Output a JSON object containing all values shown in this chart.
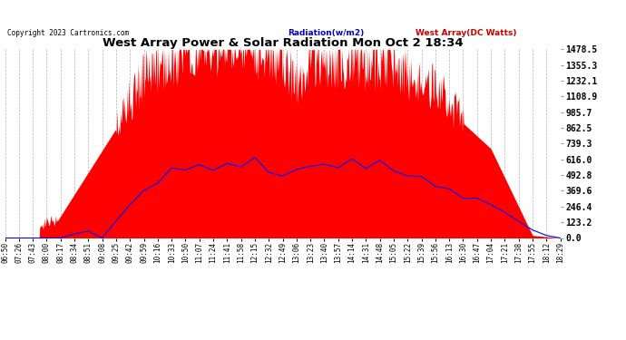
{
  "title": "West Array Power & Solar Radiation Mon Oct 2 18:34",
  "copyright": "Copyright 2023 Cartronics.com",
  "legend_radiation": "Radiation(w/m2)",
  "legend_west": "West Array(DC Watts)",
  "ylabel_right_ticks": [
    0.0,
    123.2,
    246.4,
    369.6,
    492.8,
    616.0,
    739.3,
    862.5,
    985.7,
    1108.9,
    1232.1,
    1355.3,
    1478.5
  ],
  "ymax": 1478.5,
  "ymin": 0.0,
  "background_color": "#ffffff",
  "plot_bg_color": "#ffffff",
  "radiation_color": "#ff0000",
  "west_array_color": "#0000ff",
  "grid_color": "#aaaaaa",
  "title_color": "#000000",
  "radiation_legend_color": "#0000cc",
  "west_legend_color": "#cc0000",
  "x_labels": [
    "06:50",
    "07:26",
    "07:43",
    "08:00",
    "08:17",
    "08:34",
    "08:51",
    "09:08",
    "09:25",
    "09:42",
    "09:59",
    "10:16",
    "10:33",
    "10:50",
    "11:07",
    "11:24",
    "11:41",
    "11:58",
    "12:15",
    "12:32",
    "12:49",
    "13:06",
    "13:23",
    "13:40",
    "13:57",
    "14:14",
    "14:31",
    "14:48",
    "15:05",
    "15:22",
    "15:39",
    "15:56",
    "16:13",
    "16:30",
    "16:47",
    "17:04",
    "17:21",
    "17:38",
    "17:55",
    "18:12",
    "18:29"
  ]
}
